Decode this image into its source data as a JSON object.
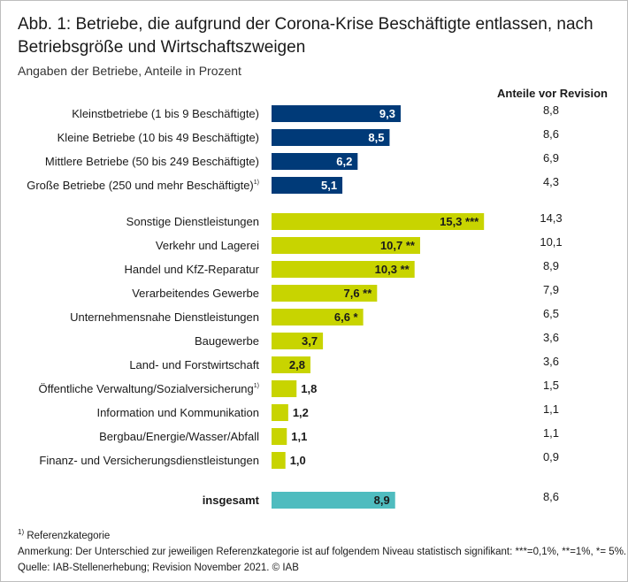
{
  "title": "Abb. 1: Betriebe, die aufgrund der Corona-Krise Beschäftigte entlassen, nach Betriebsgröße und Wirtschaftszweigen",
  "subtitle": "Angaben der Betriebe, Anteile in Prozent",
  "revision_header": "Anteile vor Revision",
  "colors": {
    "size_bars": "#003a78",
    "sector_bars": "#c8d400",
    "total_bar": "#4fbcbf"
  },
  "chart_data": {
    "type": "bar",
    "orientation": "horizontal",
    "groups": [
      {
        "color": "#003a78",
        "items": [
          {
            "label": "Kleinstbetriebe (1 bis 9 Beschäftigte)",
            "sup": "",
            "value": 9.3,
            "value_label": "9,3",
            "sig": "",
            "before_revision": "8,8"
          },
          {
            "label": "Kleine Betriebe (10 bis 49 Beschäftigte)",
            "sup": "",
            "value": 8.5,
            "value_label": "8,5",
            "sig": "",
            "before_revision": "8,6"
          },
          {
            "label": "Mittlere Betriebe (50 bis 249 Beschäftigte)",
            "sup": "",
            "value": 6.2,
            "value_label": "6,2",
            "sig": "",
            "before_revision": "6,9"
          },
          {
            "label": "Große Betriebe (250 und mehr Beschäftigte)",
            "sup": "1)",
            "value": 5.1,
            "value_label": "5,1",
            "sig": "",
            "before_revision": "4,3"
          }
        ]
      },
      {
        "color": "#c8d400",
        "items": [
          {
            "label": "Sonstige Dienstleistungen",
            "sup": "",
            "value": 15.3,
            "value_label": "15,3",
            "sig": "***",
            "before_revision": "14,3"
          },
          {
            "label": "Verkehr und Lagerei",
            "sup": "",
            "value": 10.7,
            "value_label": "10,7",
            "sig": "**",
            "before_revision": "10,1"
          },
          {
            "label": "Handel und KfZ-Reparatur",
            "sup": "",
            "value": 10.3,
            "value_label": "10,3",
            "sig": "**",
            "before_revision": "8,9"
          },
          {
            "label": "Verarbeitendes Gewerbe",
            "sup": "",
            "value": 7.6,
            "value_label": "7,6",
            "sig": "**",
            "before_revision": "7,9"
          },
          {
            "label": "Unternehmensnahe Dienstleistungen",
            "sup": "",
            "value": 6.6,
            "value_label": "6,6",
            "sig": "*",
            "before_revision": "6,5"
          },
          {
            "label": "Baugewerbe",
            "sup": "",
            "value": 3.7,
            "value_label": "3,7",
            "sig": "",
            "before_revision": "3,6"
          },
          {
            "label": "Land- und Forstwirtschaft",
            "sup": "",
            "value": 2.8,
            "value_label": "2,8",
            "sig": "",
            "before_revision": "3,6"
          },
          {
            "label": "Öffentliche Verwaltung/Sozialversicherung",
            "sup": "1)",
            "value": 1.8,
            "value_label": "1,8",
            "sig": "",
            "before_revision": "1,5"
          },
          {
            "label": "Information und Kommunikation",
            "sup": "",
            "value": 1.2,
            "value_label": "1,2",
            "sig": "",
            "before_revision": "1,1"
          },
          {
            "label": "Bergbau/Energie/Wasser/Abfall",
            "sup": "",
            "value": 1.1,
            "value_label": "1,1",
            "sig": "",
            "before_revision": "1,1"
          },
          {
            "label": "Finanz- und Versicherungsdienstleistungen",
            "sup": "",
            "value": 1.0,
            "value_label": "1,0",
            "sig": "",
            "before_revision": "0,9"
          }
        ]
      },
      {
        "color": "#4fbcbf",
        "items": [
          {
            "label": "insgesamt",
            "sup": "",
            "value": 8.9,
            "value_label": "8,9",
            "sig": "",
            "before_revision": "8,6",
            "bold": true
          }
        ]
      }
    ]
  },
  "footer": {
    "note_sup": "1)",
    "note": " Referenzkategorie",
    "remark": "Anmerkung: Der Unterschied zur jeweiligen Referenzkategorie ist auf folgendem Niveau statistisch signifikant: ***=0,1%, **=1%, *= 5%.",
    "source": "Quelle: IAB-Stellenerhebung; Revision November 2021. © IAB"
  }
}
